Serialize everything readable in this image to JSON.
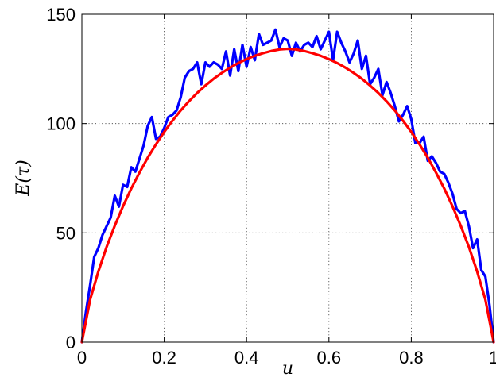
{
  "chart_data": {
    "type": "line",
    "xlabel": "u",
    "ylabel": "E(τ)",
    "xlim": [
      0,
      1
    ],
    "ylim": [
      0,
      150
    ],
    "grid": true,
    "legend": "none",
    "x_ticks": [
      0,
      0.2,
      0.4,
      0.6,
      0.8,
      1
    ],
    "x_tick_labels": [
      "0",
      "0.2",
      "0.4",
      "0.6",
      "0.8",
      "1"
    ],
    "y_ticks": [
      0,
      50,
      100,
      150
    ],
    "y_tick_labels": [
      "0",
      "50",
      "100",
      "150"
    ],
    "series": [
      {
        "color": "#0000ff",
        "style": "noisy",
        "x": [
          0,
          0.01,
          0.02,
          0.03,
          0.04,
          0.05,
          0.06,
          0.07,
          0.08,
          0.09,
          0.1,
          0.11,
          0.12,
          0.13,
          0.14,
          0.15,
          0.16,
          0.17,
          0.18,
          0.19,
          0.2,
          0.21,
          0.22,
          0.23,
          0.24,
          0.25,
          0.26,
          0.27,
          0.28,
          0.29,
          0.3,
          0.31,
          0.32,
          0.33,
          0.34,
          0.35,
          0.36,
          0.37,
          0.38,
          0.39,
          0.4,
          0.41,
          0.42,
          0.43,
          0.44,
          0.45,
          0.46,
          0.47,
          0.48,
          0.49,
          0.5,
          0.51,
          0.52,
          0.53,
          0.54,
          0.55,
          0.56,
          0.57,
          0.58,
          0.59,
          0.6,
          0.61,
          0.62,
          0.63,
          0.64,
          0.65,
          0.66,
          0.67,
          0.68,
          0.69,
          0.7,
          0.71,
          0.72,
          0.73,
          0.74,
          0.75,
          0.76,
          0.77,
          0.78,
          0.79,
          0.8,
          0.81,
          0.82,
          0.83,
          0.84,
          0.85,
          0.86,
          0.87,
          0.88,
          0.89,
          0.9,
          0.91,
          0.92,
          0.93,
          0.94,
          0.95,
          0.96,
          0.97,
          0.98,
          0.99,
          1.0
        ],
        "y": [
          0,
          14,
          26,
          39,
          43,
          49,
          53,
          57,
          67,
          62,
          72,
          71,
          80,
          78,
          84,
          90,
          99,
          103,
          93,
          94,
          98,
          103,
          104,
          106,
          112,
          121,
          124,
          125,
          128,
          118,
          128,
          126,
          128,
          127,
          125,
          133,
          122,
          134,
          124,
          136,
          126,
          135,
          129,
          141,
          136,
          137,
          138,
          143,
          135,
          139,
          138,
          131,
          137,
          133,
          136,
          137,
          135,
          140,
          134,
          138,
          142,
          129,
          142,
          137,
          133,
          128,
          132,
          138,
          125,
          131,
          118,
          121,
          125,
          113,
          119,
          114,
          108,
          101,
          104,
          108,
          102,
          91,
          91,
          94,
          83,
          85,
          82,
          78,
          77,
          73,
          68,
          61,
          59,
          60,
          53,
          43,
          47,
          33,
          30,
          17,
          0
        ]
      },
      {
        "color": "#ff0000",
        "style": "smooth",
        "x": [
          0,
          0.02,
          0.04,
          0.06,
          0.08,
          0.1,
          0.12,
          0.14,
          0.16,
          0.18,
          0.2,
          0.22,
          0.24,
          0.26,
          0.28,
          0.3,
          0.32,
          0.34,
          0.36,
          0.38,
          0.4,
          0.42,
          0.44,
          0.46,
          0.48,
          0.5,
          0.52,
          0.54,
          0.56,
          0.58,
          0.6,
          0.62,
          0.64,
          0.66,
          0.68,
          0.7,
          0.72,
          0.74,
          0.76,
          0.78,
          0.8,
          0.82,
          0.84,
          0.86,
          0.88,
          0.9,
          0.92,
          0.94,
          0.96,
          0.98,
          1.0
        ],
        "y": [
          0,
          19.4,
          32.3,
          43.5,
          53.3,
          62.2,
          70.3,
          77.6,
          84.4,
          90.5,
          96.2,
          101.3,
          106.0,
          110.2,
          114.0,
          117.4,
          120.5,
          123.2,
          125.6,
          127.7,
          129.5,
          131.0,
          132.2,
          133.2,
          133.9,
          134.2,
          133.9,
          133.2,
          132.2,
          131.0,
          129.5,
          127.7,
          125.6,
          123.2,
          120.5,
          117.4,
          114.0,
          110.2,
          106.0,
          101.3,
          96.2,
          90.5,
          84.4,
          77.6,
          70.3,
          62.2,
          53.3,
          43.5,
          32.3,
          19.4,
          0
        ]
      }
    ]
  }
}
